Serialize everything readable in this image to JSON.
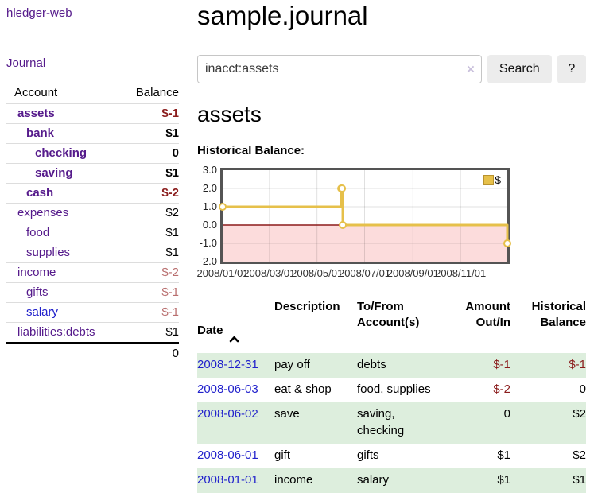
{
  "app": {
    "title": "hledger-web"
  },
  "sidebar": {
    "journal_link": "Journal",
    "accounts": {
      "header_account": "Account",
      "header_balance": "Balance",
      "rows": [
        {
          "name": "assets",
          "balance": "$-1",
          "level": 1,
          "bold": true,
          "unvisited": false
        },
        {
          "name": "bank",
          "balance": "$1",
          "level": 2,
          "bold": true,
          "unvisited": false
        },
        {
          "name": "checking",
          "balance": "0",
          "level": 3,
          "bold": true,
          "unvisited": false
        },
        {
          "name": "saving",
          "balance": "$1",
          "level": 3,
          "bold": true,
          "unvisited": false
        },
        {
          "name": "cash",
          "balance": "$-2",
          "level": 2,
          "bold": true,
          "unvisited": false
        },
        {
          "name": "expenses",
          "balance": "$2",
          "level": 1,
          "bold": false,
          "unvisited": false
        },
        {
          "name": "food",
          "balance": "$1",
          "level": 2,
          "bold": false,
          "unvisited": false
        },
        {
          "name": "supplies",
          "balance": "$1",
          "level": 2,
          "bold": false,
          "unvisited": false
        },
        {
          "name": "income",
          "balance": "$-2",
          "level": 1,
          "bold": false,
          "unvisited": false
        },
        {
          "name": "gifts",
          "balance": "$-1",
          "level": 2,
          "bold": false,
          "unvisited": false
        },
        {
          "name": "salary",
          "balance": "$-1",
          "level": 2,
          "bold": false,
          "unvisited": true
        },
        {
          "name": "liabilities:debts",
          "balance": "$1",
          "level": 1,
          "bold": false,
          "unvisited": false
        }
      ],
      "total": "0"
    }
  },
  "main": {
    "title": "sample.journal",
    "search": {
      "value": "inacct:assets",
      "clear_icon": "×",
      "button": "Search",
      "help": "?"
    },
    "heading": "assets",
    "chart_label": "Historical Balance:"
  },
  "chart_data": {
    "type": "line",
    "step": true,
    "title": "Historical Balance",
    "series": [
      {
        "name": "$",
        "color": "#e6c04a",
        "points": [
          [
            "2008-01-01",
            1
          ],
          [
            "2008-06-01",
            2
          ],
          [
            "2008-06-02",
            2
          ],
          [
            "2008-06-03",
            0
          ],
          [
            "2008-12-31",
            -1
          ]
        ]
      }
    ],
    "x_range": [
      "2008-01-01",
      "2008-12-31"
    ],
    "ylim": [
      -2,
      3
    ],
    "yticks": [
      "3.0",
      "2.0",
      "1.0",
      "0.0",
      "-1.0",
      "-2.0"
    ],
    "xticks": [
      "2008/01/01",
      "2008/03/01",
      "2008/05/01",
      "2008/07/01",
      "2008/09/01",
      "2008/11/01"
    ],
    "legend": "$",
    "grid": true,
    "legend_position": "top-right",
    "colors": {
      "negative_region": "#fcdcdc",
      "zero_line": "#8b1a1a",
      "grid": "rgba(0,0,0,0.12)",
      "marker_fill": "#ffffff"
    }
  },
  "register": {
    "headers": {
      "date": "Date",
      "description": "Description",
      "accounts": "To/From\nAccount(s)",
      "amount": "Amount\nOut/In",
      "balance": "Historical\nBalance"
    },
    "rows": [
      {
        "date": "2008-12-31",
        "description": "pay off",
        "accounts": "debts",
        "amount": "$-1",
        "balance": "$-1",
        "shaded": true
      },
      {
        "date": "2008-06-03",
        "description": "eat & shop",
        "accounts": "food, supplies",
        "amount": "$-2",
        "balance": "0",
        "shaded": false
      },
      {
        "date": "2008-06-02",
        "description": "save",
        "accounts": "saving,\nchecking",
        "amount": "0",
        "balance": "$2",
        "shaded": true
      },
      {
        "date": "2008-06-01",
        "description": "gift",
        "accounts": "gifts",
        "amount": "$1",
        "balance": "$2",
        "shaded": false
      },
      {
        "date": "2008-01-01",
        "description": "income",
        "accounts": "salary",
        "amount": "$1",
        "balance": "$1",
        "shaded": true
      }
    ]
  },
  "colors": {
    "link_purple": "#551a8b",
    "link_blue": "#2222cc",
    "negative_strong": "#8b1d1d",
    "negative_soft": "#b96f6f",
    "row_green": "#ddeedd",
    "accent_gold": "#e6c04a"
  }
}
